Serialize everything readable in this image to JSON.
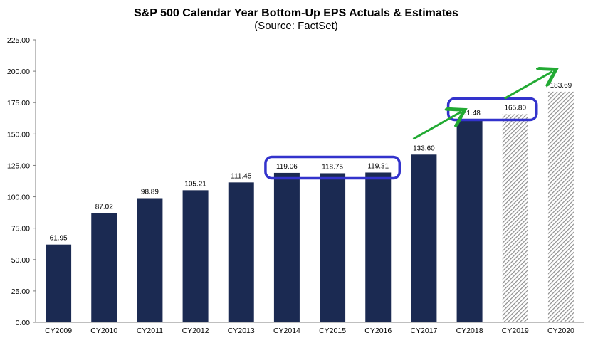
{
  "chart_data": {
    "type": "bar",
    "title": "S&P 500 Calendar Year Bottom-Up EPS Actuals & Estimates",
    "subtitle": "(Source: FactSet)",
    "categories": [
      "CY2009",
      "CY2010",
      "CY2011",
      "CY2012",
      "CY2013",
      "CY2014",
      "CY2015",
      "CY2016",
      "CY2017",
      "CY2018",
      "CY2019",
      "CY2020"
    ],
    "values": [
      61.95,
      87.02,
      98.89,
      105.21,
      111.45,
      119.06,
      118.75,
      119.31,
      133.6,
      161.48,
      165.8,
      183.69
    ],
    "value_labels": [
      "61.95",
      "87.02",
      "98.89",
      "105.21",
      "111.45",
      "119.06",
      "118.75",
      "119.31",
      "133.60",
      "161.48",
      "165.80",
      "183.69"
    ],
    "bar_style": [
      "actual",
      "actual",
      "actual",
      "actual",
      "actual",
      "actual",
      "actual",
      "actual",
      "actual",
      "actual",
      "estimate",
      "estimate"
    ],
    "yticks": [
      "0.00",
      "25.00",
      "50.00",
      "75.00",
      "100.00",
      "125.00",
      "150.00",
      "175.00",
      "200.00",
      "225.00"
    ],
    "ylim": [
      0,
      225
    ],
    "grid": false,
    "colors": {
      "actual": "#1b2a52",
      "estimate_stripe": "#8c8c8c",
      "highlight_box": "#3333cc",
      "arrow": "#22aa33",
      "axis": "#7f7f7f"
    },
    "annotations": {
      "highlight_groups": [
        [
          "CY2014",
          "CY2016"
        ],
        [
          "CY2018",
          "CY2019"
        ]
      ],
      "arrows_after": [
        "CY2017",
        "CY2019"
      ]
    }
  }
}
